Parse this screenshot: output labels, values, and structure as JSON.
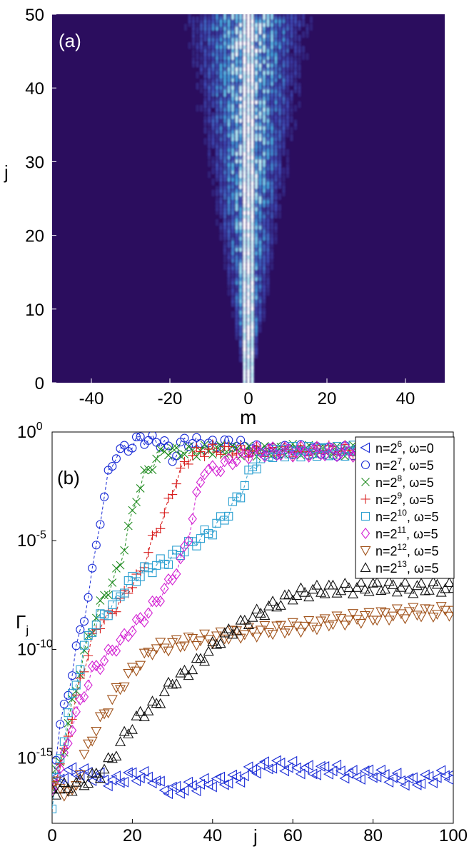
{
  "chart_data": [
    {
      "type": "heatmap",
      "panel_label": "(a)",
      "xlabel": "m",
      "ylabel": "j",
      "xlim": [
        -50,
        50
      ],
      "ylim": [
        0,
        50
      ],
      "xticks": [
        -40,
        -20,
        0,
        20,
        40
      ],
      "yticks": [
        0,
        10,
        20,
        30,
        40,
        50
      ],
      "colormap": [
        "#2b0d5e",
        "#3d4db8",
        "#3fa0d8",
        "#a8e4f0",
        "#ffffff"
      ],
      "grid": false,
      "description_of_values": {
        "center_m": 0,
        "spread_halfwidth_m_at_j0": 2,
        "spread_halfwidth_m_at_j50": 25,
        "max_intensity": 1
      }
    },
    {
      "type": "scatter",
      "panel_label": "(b)",
      "xlabel": "j",
      "ylabel": "Γ_j",
      "xlim": [
        0,
        100
      ],
      "yscale": "log",
      "ylim_exp": [
        -18,
        0
      ],
      "xticks": [
        0,
        20,
        40,
        60,
        80,
        100
      ],
      "yticks": [
        {
          "base": "10",
          "exp": "0",
          "value_exp": 0
        },
        {
          "base": "10",
          "exp": "-5",
          "value_exp": -5
        },
        {
          "base": "10",
          "exp": "-10",
          "value_exp": -10
        },
        {
          "base": "10",
          "exp": "-15",
          "value_exp": -15
        }
      ],
      "legend_position": "top-right",
      "series": [
        {
          "base": "n=2",
          "exp": "6",
          "tail": ", ω=0",
          "color": "#1a2cd6",
          "marker": "triangle-left",
          "dashed": false,
          "points": [
            [
              0,
              -16.3
            ],
            [
              3,
              -15.7
            ],
            [
              6,
              -15.6
            ],
            [
              10,
              -15.8
            ],
            [
              15,
              -16.1
            ],
            [
              20,
              -15.8
            ],
            [
              25,
              -15.9
            ],
            [
              27,
              -16.3
            ],
            [
              30,
              -16.5
            ],
            [
              35,
              -16.3
            ],
            [
              40,
              -16.1
            ],
            [
              45,
              -16.0
            ],
            [
              48,
              -15.8
            ],
            [
              50,
              -15.5
            ],
            [
              55,
              -15.3
            ],
            [
              60,
              -15.4
            ],
            [
              65,
              -15.6
            ],
            [
              70,
              -15.5
            ],
            [
              75,
              -15.8
            ],
            [
              80,
              -15.7
            ],
            [
              85,
              -15.9
            ],
            [
              90,
              -16.1
            ],
            [
              95,
              -15.9
            ],
            [
              100,
              -15.7
            ]
          ]
        },
        {
          "base": "n=2",
          "exp": "7",
          "tail": ", ω=5",
          "color": "#1a2cd6",
          "marker": "circle",
          "dashed": true,
          "points": [
            [
              0,
              -16.2
            ],
            [
              2,
              -13.5
            ],
            [
              4,
              -12
            ],
            [
              6,
              -10
            ],
            [
              8,
              -8.5
            ],
            [
              10,
              -6.5
            ],
            [
              12,
              -4
            ],
            [
              14,
              -2
            ],
            [
              16,
              -1
            ],
            [
              18,
              -0.8
            ],
            [
              20,
              -0.6
            ],
            [
              22,
              -0.3
            ],
            [
              25,
              -0.4
            ],
            [
              28,
              -0.5
            ],
            [
              30,
              -1.2
            ],
            [
              33,
              -0.4
            ],
            [
              36,
              -0.5
            ],
            [
              40,
              -0.6
            ],
            [
              45,
              -0.5
            ],
            [
              50,
              -0.8
            ],
            [
              55,
              -0.9
            ],
            [
              60,
              -0.8
            ],
            [
              70,
              -0.9
            ],
            [
              80,
              -0.8
            ],
            [
              90,
              -0.9
            ],
            [
              100,
              -0.9
            ]
          ]
        },
        {
          "base": "n=2",
          "exp": "8",
          "tail": ", ω=5",
          "color": "#1e8a1e",
          "marker": "x",
          "dashed": true,
          "points": [
            [
              0,
              -16.4
            ],
            [
              3,
              -14.5
            ],
            [
              5,
              -12.5
            ],
            [
              7,
              -11
            ],
            [
              9,
              -9.5
            ],
            [
              11,
              -8.5
            ],
            [
              13,
              -7.5
            ],
            [
              15,
              -7
            ],
            [
              17,
              -6
            ],
            [
              19,
              -4.5
            ],
            [
              21,
              -3
            ],
            [
              23,
              -2
            ],
            [
              25,
              -1.5
            ],
            [
              28,
              -0.8
            ],
            [
              30,
              -0.9
            ],
            [
              35,
              -0.9
            ],
            [
              40,
              -0.8
            ],
            [
              50,
              -0.9
            ],
            [
              60,
              -0.8
            ],
            [
              70,
              -0.9
            ],
            [
              80,
              -0.8
            ],
            [
              100,
              -0.9
            ]
          ]
        },
        {
          "base": "n=2",
          "exp": "9",
          "tail": ", ω=5",
          "color": "#d81f1f",
          "marker": "plus",
          "dashed": true,
          "points": [
            [
              0,
              -16.3
            ],
            [
              3,
              -14.8
            ],
            [
              5,
              -13
            ],
            [
              7,
              -11.5
            ],
            [
              10,
              -9.5
            ],
            [
              12,
              -8.8
            ],
            [
              15,
              -8.3
            ],
            [
              18,
              -7.5
            ],
            [
              20,
              -7
            ],
            [
              22,
              -6.5
            ],
            [
              25,
              -5
            ],
            [
              28,
              -3.8
            ],
            [
              31,
              -2.2
            ],
            [
              33,
              -1.5
            ],
            [
              35,
              -1
            ],
            [
              40,
              -0.8
            ],
            [
              50,
              -0.9
            ],
            [
              60,
              -0.9
            ],
            [
              70,
              -0.8
            ],
            [
              80,
              -0.9
            ],
            [
              100,
              -0.9
            ]
          ]
        },
        {
          "base": "n=2",
          "exp": "10",
          "tail": ", ω=5",
          "color": "#2a9fd0",
          "marker": "square",
          "dashed": true,
          "points": [
            [
              0,
              -17.3
            ],
            [
              2,
              -15
            ],
            [
              4,
              -13
            ],
            [
              6,
              -11.5
            ],
            [
              8,
              -10
            ],
            [
              10,
              -9
            ],
            [
              12,
              -8.6
            ],
            [
              15,
              -8
            ],
            [
              18,
              -7.2
            ],
            [
              20,
              -6.8
            ],
            [
              24,
              -6.3
            ],
            [
              28,
              -6
            ],
            [
              32,
              -5.5
            ],
            [
              36,
              -5
            ],
            [
              40,
              -4.5
            ],
            [
              44,
              -3.7
            ],
            [
              47,
              -2.8
            ],
            [
              50,
              -1.6
            ],
            [
              54,
              -1
            ],
            [
              60,
              -0.9
            ],
            [
              70,
              -0.9
            ],
            [
              80,
              -0.8
            ],
            [
              100,
              -0.9
            ]
          ]
        },
        {
          "base": "n=2",
          "exp": "11",
          "tail": ", ω=5",
          "color": "#d21fd2",
          "marker": "diamond",
          "dashed": true,
          "points": [
            [
              0,
              -16.5
            ],
            [
              3,
              -15
            ],
            [
              5,
              -13.5
            ],
            [
              8,
              -12
            ],
            [
              10,
              -11
            ],
            [
              13,
              -10.5
            ],
            [
              15,
              -10
            ],
            [
              18,
              -9.5
            ],
            [
              20,
              -9
            ],
            [
              23,
              -8.5
            ],
            [
              26,
              -7.8
            ],
            [
              29,
              -7
            ],
            [
              32,
              -6
            ],
            [
              34,
              -4.8
            ],
            [
              36,
              -3
            ],
            [
              38,
              -1.7
            ],
            [
              40,
              -1.8
            ],
            [
              45,
              -1.3
            ],
            [
              50,
              -0.9
            ],
            [
              60,
              -0.9
            ],
            [
              70,
              -0.9
            ],
            [
              80,
              -0.9
            ],
            [
              100,
              -0.9
            ]
          ]
        },
        {
          "base": "n=2",
          "exp": "12",
          "tail": ", ω=5",
          "color": "#a0521a",
          "marker": "triangle-down",
          "dashed": false,
          "points": [
            [
              0,
              -16.2
            ],
            [
              5,
              -16.7
            ],
            [
              8,
              -15
            ],
            [
              10,
              -14
            ],
            [
              13,
              -13
            ],
            [
              16,
              -12
            ],
            [
              20,
              -11
            ],
            [
              25,
              -10
            ],
            [
              30,
              -9.8
            ],
            [
              35,
              -9.6
            ],
            [
              40,
              -9.5
            ],
            [
              45,
              -9.3
            ],
            [
              50,
              -9.2
            ],
            [
              55,
              -9.1
            ],
            [
              60,
              -9
            ],
            [
              65,
              -8.9
            ],
            [
              70,
              -8.7
            ],
            [
              75,
              -8.6
            ],
            [
              80,
              -8.5
            ],
            [
              85,
              -8.4
            ],
            [
              90,
              -8.3
            ],
            [
              95,
              -8.3
            ],
            [
              100,
              -8.2
            ]
          ]
        },
        {
          "base": "n=2",
          "exp": "13",
          "tail": ", ω=5",
          "color": "#111111",
          "marker": "triangle-up",
          "dashed": false,
          "points": [
            [
              0,
              -16.5
            ],
            [
              5,
              -16.3
            ],
            [
              8,
              -16.1
            ],
            [
              12,
              -15.7
            ],
            [
              15,
              -15
            ],
            [
              18,
              -14
            ],
            [
              22,
              -13
            ],
            [
              26,
              -12.5
            ],
            [
              30,
              -11.5
            ],
            [
              34,
              -11
            ],
            [
              38,
              -10.3
            ],
            [
              42,
              -9.5
            ],
            [
              46,
              -9
            ],
            [
              50,
              -8.5
            ],
            [
              55,
              -8
            ],
            [
              60,
              -7.5
            ],
            [
              65,
              -7.3
            ],
            [
              70,
              -7.2
            ],
            [
              75,
              -7.2
            ],
            [
              80,
              -7.1
            ],
            [
              85,
              -7.1
            ],
            [
              90,
              -7.2
            ],
            [
              95,
              -7.1
            ],
            [
              100,
              -7.2
            ]
          ]
        }
      ]
    }
  ]
}
